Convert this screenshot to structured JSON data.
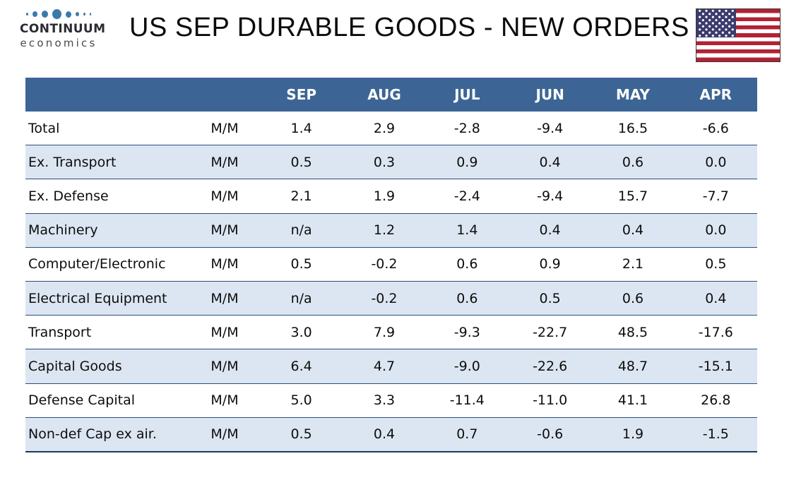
{
  "header": {
    "logo": {
      "line1": "CONTINUUM",
      "line2": "economics"
    },
    "title": "US SEP DURABLE GOODS - NEW ORDERS",
    "flag_icon": "us-flag-icon"
  },
  "table": {
    "columns": [
      "SEP",
      "AUG",
      "JUL",
      "JUN",
      "MAY",
      "APR"
    ],
    "rows": [
      {
        "label": "Total",
        "measure": "M/M",
        "values": [
          "1.4",
          "2.9",
          "-2.8",
          "-9.4",
          "16.5",
          "-6.6"
        ]
      },
      {
        "label": "Ex. Transport",
        "measure": "M/M",
        "values": [
          "0.5",
          "0.3",
          "0.9",
          "0.4",
          "0.6",
          "0.0"
        ]
      },
      {
        "label": "Ex. Defense",
        "measure": "M/M",
        "values": [
          "2.1",
          "1.9",
          "-2.4",
          "-9.4",
          "15.7",
          "-7.7"
        ]
      },
      {
        "label": "Machinery",
        "measure": "M/M",
        "values": [
          "n/a",
          "1.2",
          "1.4",
          "0.4",
          "0.4",
          "0.0"
        ]
      },
      {
        "label": "Computer/Electronic",
        "measure": "M/M",
        "values": [
          "0.5",
          "-0.2",
          "0.6",
          "0.9",
          "2.1",
          "0.5"
        ]
      },
      {
        "label": "Electrical Equipment",
        "measure": "M/M",
        "values": [
          "n/a",
          "-0.2",
          "0.6",
          "0.5",
          "0.6",
          "0.4"
        ]
      },
      {
        "label": "Transport",
        "measure": "M/M",
        "values": [
          "3.0",
          "7.9",
          "-9.3",
          "-22.7",
          "48.5",
          "-17.6"
        ]
      },
      {
        "label": "Capital Goods",
        "measure": "M/M",
        "values": [
          "6.4",
          "4.7",
          "-9.0",
          "-22.6",
          "48.7",
          "-15.1"
        ]
      },
      {
        "label": "Defense Capital",
        "measure": "M/M",
        "values": [
          "5.0",
          "3.3",
          "-11.4",
          "-11.0",
          "41.1",
          "26.8"
        ]
      },
      {
        "label": "Non-def Cap ex air.",
        "measure": "M/M",
        "values": [
          "0.5",
          "0.4",
          "0.7",
          "-0.6",
          "1.9",
          "-1.5"
        ]
      }
    ]
  },
  "chart_data": {
    "type": "table",
    "title": "US SEP DURABLE GOODS - NEW ORDERS",
    "columns": [
      "SEP",
      "AUG",
      "JUL",
      "JUN",
      "MAY",
      "APR"
    ],
    "unit": "M/M % change",
    "series": [
      {
        "name": "Total",
        "values": [
          1.4,
          2.9,
          -2.8,
          -9.4,
          16.5,
          -6.6
        ]
      },
      {
        "name": "Ex. Transport",
        "values": [
          0.5,
          0.3,
          0.9,
          0.4,
          0.6,
          0.0
        ]
      },
      {
        "name": "Ex. Defense",
        "values": [
          2.1,
          1.9,
          -2.4,
          -9.4,
          15.7,
          -7.7
        ]
      },
      {
        "name": "Machinery",
        "values": [
          null,
          1.2,
          1.4,
          0.4,
          0.4,
          0.0
        ]
      },
      {
        "name": "Computer/Electronic",
        "values": [
          0.5,
          -0.2,
          0.6,
          0.9,
          2.1,
          0.5
        ]
      },
      {
        "name": "Electrical Equipment",
        "values": [
          null,
          -0.2,
          0.6,
          0.5,
          0.6,
          0.4
        ]
      },
      {
        "name": "Transport",
        "values": [
          3.0,
          7.9,
          -9.3,
          -22.7,
          48.5,
          -17.6
        ]
      },
      {
        "name": "Capital Goods",
        "values": [
          6.4,
          4.7,
          -9.0,
          -22.6,
          48.7,
          -15.1
        ]
      },
      {
        "name": "Defense Capital",
        "values": [
          5.0,
          3.3,
          -11.4,
          -11.0,
          41.1,
          26.8
        ]
      },
      {
        "name": "Non-def Cap ex air.",
        "values": [
          0.5,
          0.4,
          0.7,
          -0.6,
          1.9,
          -1.5
        ]
      }
    ]
  },
  "colors": {
    "header_bg": "#3C6595",
    "row_alt": "#DCE6F2",
    "row_border": "#2B4F78",
    "table_bottom_border": "#1E3A5C",
    "logo_dot": "#3A7AAB",
    "flag_red": "#B22234",
    "flag_navy": "#3C3B6E",
    "title_color": "#0B0B0B"
  }
}
